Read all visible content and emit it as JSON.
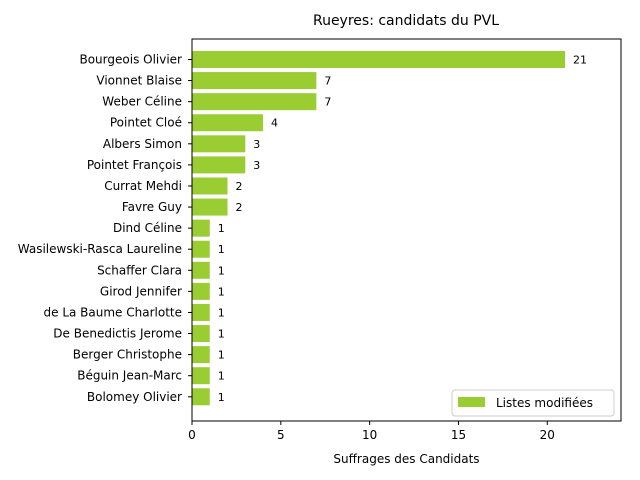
{
  "chart_data": {
    "type": "bar",
    "orientation": "horizontal",
    "title": "Rueyres: candidats du PVL",
    "xlabel": "Suffrages des Candidats",
    "ylabel": "",
    "xlim": [
      0,
      24.15
    ],
    "xticks": [
      0,
      5,
      10,
      15,
      20
    ],
    "categories": [
      "Bourgeois Olivier",
      "Vionnet Blaise",
      "Weber Céline",
      "Pointet Cloé",
      "Albers Simon",
      "Pointet François",
      "Currat Mehdi",
      "Favre Guy",
      "Dind Céline",
      "Wasilewski-Rasca Laureline",
      "Schaffer Clara",
      "Girod Jennifer",
      "de La Baume Charlotte",
      "De Benedictis Jerome",
      "Berger Christophe",
      "Béguin Jean-Marc",
      "Bolomey Olivier"
    ],
    "series": [
      {
        "name": "Listes modifiées",
        "color": "#9acd32",
        "values": [
          21,
          7,
          7,
          4,
          3,
          3,
          2,
          2,
          1,
          1,
          1,
          1,
          1,
          1,
          1,
          1,
          1
        ]
      }
    ],
    "data_labels": true,
    "grid": false,
    "legend_position": "lower right"
  }
}
